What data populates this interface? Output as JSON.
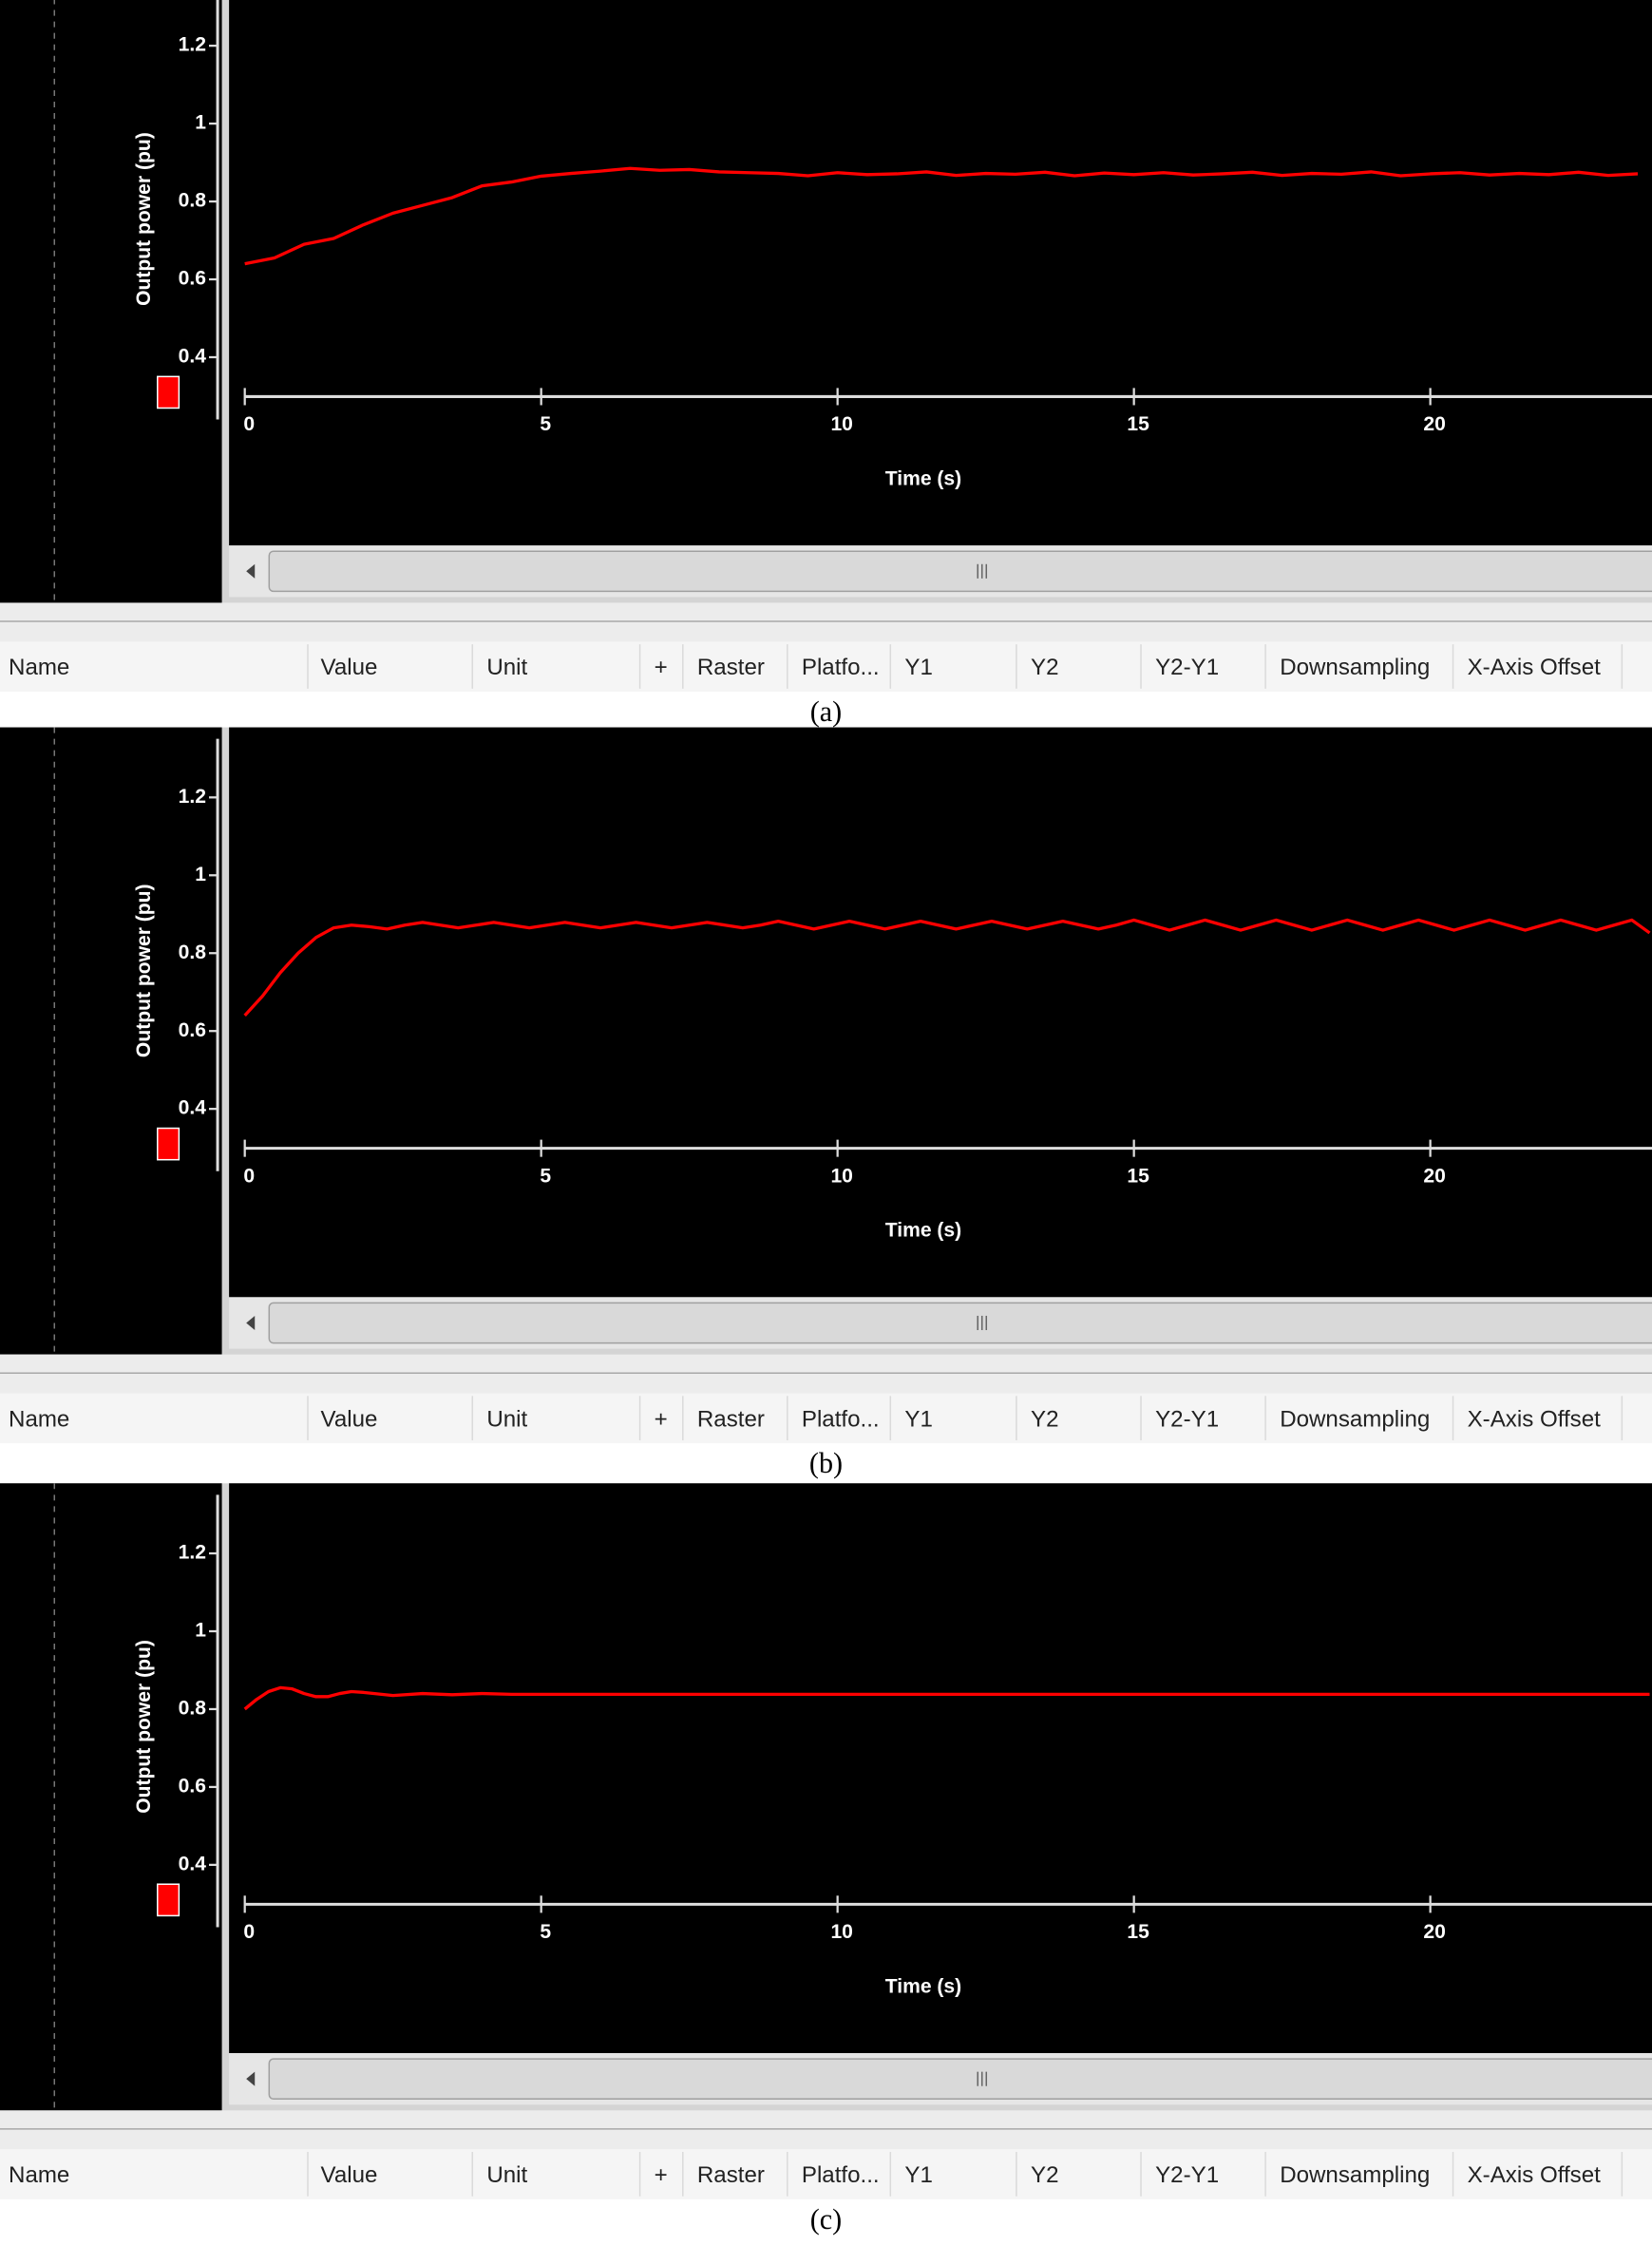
{
  "chart_data": [
    {
      "type": "line",
      "y_label": "Output power (pu)",
      "x_label": "Time (s)",
      "xlim": [
        0,
        23.74
      ],
      "ylim": [
        0.24,
        1.38
      ],
      "xticks": [
        0,
        5,
        10,
        15,
        20
      ],
      "yticks": [
        0.4,
        0.6,
        0.8,
        1,
        1.2
      ],
      "x": [
        0,
        0.5,
        1,
        1.5,
        2,
        2.5,
        3,
        3.5,
        4,
        4.5,
        5,
        5.5,
        6,
        6.5,
        7,
        7.5,
        8,
        8.5,
        9,
        9.5,
        10,
        10.5,
        11,
        11.5,
        12,
        12.5,
        13,
        13.5,
        14,
        14.5,
        15,
        15.5,
        16,
        16.5,
        17,
        17.5,
        18,
        18.5,
        19,
        19.5,
        20,
        20.5,
        21,
        21.5,
        22,
        22.5,
        23,
        23.5
      ],
      "series": [
        {
          "color": "#ff0000",
          "values": [
            0.64,
            0.655,
            0.69,
            0.705,
            0.74,
            0.77,
            0.79,
            0.81,
            0.84,
            0.85,
            0.865,
            0.872,
            0.878,
            0.885,
            0.88,
            0.882,
            0.876,
            0.874,
            0.872,
            0.866,
            0.874,
            0.869,
            0.871,
            0.876,
            0.867,
            0.872,
            0.87,
            0.875,
            0.866,
            0.873,
            0.869,
            0.874,
            0.868,
            0.871,
            0.875,
            0.867,
            0.872,
            0.87,
            0.876,
            0.866,
            0.871,
            0.874,
            0.868,
            0.872,
            0.869,
            0.875,
            0.867,
            0.871
          ]
        }
      ]
    },
    {
      "type": "line",
      "y_label": "Output power (pu)",
      "x_label": "Time (s)",
      "xlim": [
        0,
        23.74
      ],
      "ylim": [
        0.24,
        1.38
      ],
      "xticks": [
        0,
        5,
        10,
        15,
        20
      ],
      "yticks": [
        0.4,
        0.6,
        0.8,
        1,
        1.2
      ],
      "x": [
        0,
        0.3,
        0.6,
        0.9,
        1.2,
        1.5,
        1.8,
        2.1,
        2.4,
        2.7,
        3,
        3.3,
        3.6,
        3.9,
        4.2,
        4.5,
        4.8,
        5.1,
        5.4,
        5.7,
        6,
        6.3,
        6.6,
        6.9,
        7.2,
        7.5,
        7.8,
        8.1,
        8.4,
        8.7,
        9,
        9.3,
        9.6,
        9.9,
        10.2,
        10.5,
        10.8,
        11.1,
        11.4,
        11.7,
        12,
        12.3,
        12.6,
        12.9,
        13.2,
        13.5,
        13.8,
        14.1,
        14.4,
        14.7,
        15,
        15.3,
        15.6,
        15.9,
        16.2,
        16.5,
        16.8,
        17.1,
        17.4,
        17.7,
        18,
        18.3,
        18.6,
        18.9,
        19.2,
        19.5,
        19.8,
        20.1,
        20.4,
        20.7,
        21,
        21.3,
        21.6,
        21.9,
        22.2,
        22.5,
        22.8,
        23.1,
        23.4,
        23.7
      ],
      "series": [
        {
          "color": "#ff0000",
          "values": [
            0.64,
            0.69,
            0.75,
            0.8,
            0.84,
            0.865,
            0.872,
            0.868,
            0.862,
            0.872,
            0.879,
            0.872,
            0.865,
            0.872,
            0.879,
            0.872,
            0.865,
            0.872,
            0.879,
            0.872,
            0.865,
            0.872,
            0.879,
            0.872,
            0.865,
            0.872,
            0.879,
            0.872,
            0.865,
            0.872,
            0.882,
            0.872,
            0.862,
            0.872,
            0.882,
            0.872,
            0.862,
            0.872,
            0.882,
            0.872,
            0.862,
            0.872,
            0.882,
            0.872,
            0.862,
            0.872,
            0.882,
            0.872,
            0.862,
            0.872,
            0.885,
            0.872,
            0.859,
            0.872,
            0.885,
            0.872,
            0.859,
            0.872,
            0.885,
            0.872,
            0.859,
            0.872,
            0.885,
            0.872,
            0.859,
            0.872,
            0.885,
            0.872,
            0.859,
            0.872,
            0.885,
            0.872,
            0.859,
            0.872,
            0.885,
            0.872,
            0.859,
            0.872,
            0.885,
            0.852
          ]
        }
      ]
    },
    {
      "type": "line",
      "y_label": "Output power (pu)",
      "x_label": "Time (s)",
      "xlim": [
        0,
        23.74
      ],
      "ylim": [
        0.24,
        1.38
      ],
      "xticks": [
        0,
        5,
        10,
        15,
        20
      ],
      "yticks": [
        0.4,
        0.6,
        0.8,
        1,
        1.2
      ],
      "x": [
        0,
        0.2,
        0.4,
        0.6,
        0.8,
        1,
        1.2,
        1.4,
        1.6,
        1.8,
        2,
        2.5,
        3,
        3.5,
        4,
        4.5,
        5,
        6,
        8,
        10,
        12,
        14,
        16,
        18,
        20,
        22,
        23.7
      ],
      "series": [
        {
          "color": "#ff0000",
          "values": [
            0.8,
            0.825,
            0.845,
            0.855,
            0.852,
            0.84,
            0.832,
            0.832,
            0.84,
            0.845,
            0.843,
            0.835,
            0.84,
            0.837,
            0.84,
            0.838,
            0.838,
            0.838,
            0.838,
            0.838,
            0.838,
            0.838,
            0.838,
            0.838,
            0.838,
            0.838,
            0.838
          ]
        }
      ]
    }
  ],
  "panels": [
    {
      "columns": [
        "Name",
        "Value",
        "Unit",
        "+",
        "Raster",
        "Platfo...",
        "Y1",
        "Y2",
        "Y2-Y1",
        "Downsampling",
        "X-Axis Offset"
      ],
      "caption": "(a)"
    },
    {
      "columns": [
        "Name",
        "Value",
        "Unit",
        "+",
        "Raster",
        "Platfo...",
        "Y1",
        "Y2",
        "Y2-Y1",
        "Downsampling",
        "X-Axis Offset"
      ],
      "caption": "(b)"
    },
    {
      "columns": [
        "Name",
        "Value",
        "Unit",
        "+",
        "Raster",
        "Platfo...",
        "Y1",
        "Y2",
        "Y2-Y1",
        "Downsampling",
        "X-Axis Offset"
      ],
      "caption": "(c)"
    }
  ]
}
